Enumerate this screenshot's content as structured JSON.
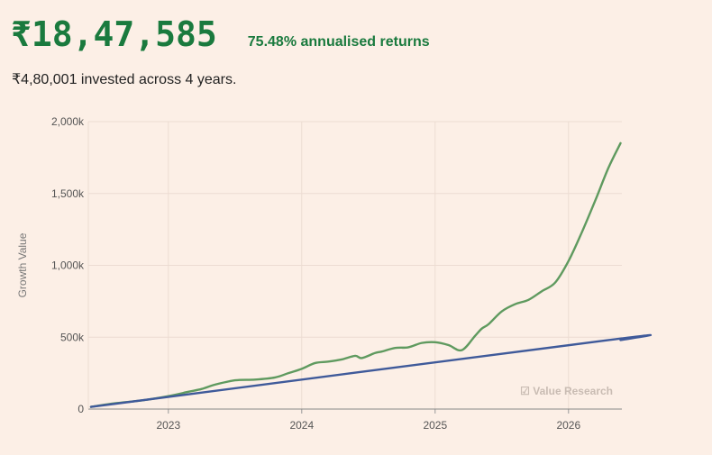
{
  "summary": {
    "value": "₹18,47,585",
    "returns": "75.48% annualised returns",
    "invested_text": "₹4,80,001 invested across 4 years."
  },
  "watermark": "☑ Value Research",
  "colors": {
    "background": "#fcefe6",
    "accent": "#1a7a3e",
    "growth_line": "#5f9a5f",
    "invested_line": "#3f5a9a",
    "grid": "#ecdcd2"
  },
  "chart_data": {
    "type": "line",
    "title": "",
    "xlabel": "",
    "ylabel": "Growth Value",
    "xlim": [
      2022.4,
      2026.4
    ],
    "ylim": [
      0,
      2000
    ],
    "x_ticks": [
      2023,
      2024,
      2025,
      2026
    ],
    "x_tick_labels": [
      "2023",
      "2024",
      "2025",
      "2026"
    ],
    "y_ticks": [
      0,
      500,
      1000,
      1500,
      2000
    ],
    "y_tick_labels": [
      "0",
      "500k",
      "1,000k",
      "1,500k",
      "2,000k"
    ],
    "grid": true,
    "series": [
      {
        "key": "growth",
        "x": [
          2022.42,
          2022.6,
          2022.8,
          2023.0,
          2023.15,
          2023.25,
          2023.35,
          2023.5,
          2023.65,
          2023.8,
          2023.9,
          2024.0,
          2024.1,
          2024.2,
          2024.3,
          2024.4,
          2024.45,
          2024.55,
          2024.6,
          2024.7,
          2024.8,
          2024.9,
          2025.0,
          2025.1,
          2025.2,
          2025.3,
          2025.35,
          2025.4,
          2025.5,
          2025.6,
          2025.7,
          2025.8,
          2025.9,
          2026.0,
          2026.1,
          2026.2,
          2026.3,
          2026.39
        ],
        "y": [
          15,
          40,
          60,
          90,
          120,
          140,
          170,
          200,
          205,
          220,
          250,
          280,
          320,
          330,
          345,
          370,
          355,
          390,
          400,
          425,
          430,
          460,
          465,
          445,
          410,
          510,
          560,
          590,
          680,
          730,
          760,
          820,
          880,
          1030,
          1230,
          1450,
          1680,
          1850
        ]
      },
      {
        "key": "invested",
        "x": [
          2022.42,
          2026.3,
          2026.39
        ],
        "y": [
          15,
          480,
          480
        ]
      }
    ]
  }
}
